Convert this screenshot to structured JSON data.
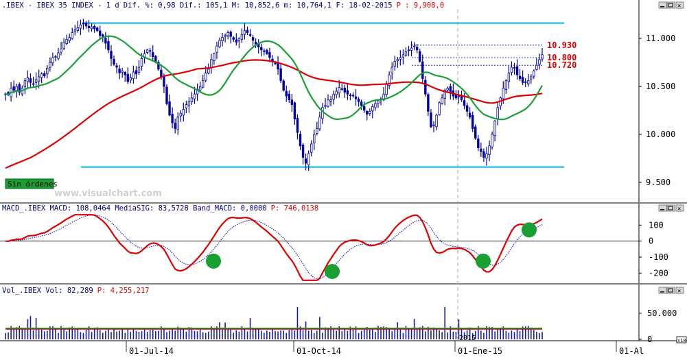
{
  "panels": {
    "price_header_name": ".IBEX - IBEX 35 INDEX - 1 d",
    "price_header_stats": "Dif. %: 0,98 Dif.: 105,1 M: 10,852,6 m: 10,764,1 F: 18-02-2015",
    "price_header_p": "P : 9,908,0",
    "no_orders_label": "Sin órdenes",
    "watermark": "www.visualchart.com",
    "macd_header": "MACD_.IBEX MACD: 108,0464 MediaSIG: 83,5728 Band_MACD: 0,0000",
    "macd_header_p": "P: 746,0138",
    "vol_header": "Vol_.IBEX Vol: 82,289",
    "vol_header_p": "P: 4,255,217",
    "year_marker": "2015",
    "corner_scale": "x10"
  },
  "chart_data": [
    {
      "type": "candlestick",
      "name": "IBEX 35 INDEX daily",
      "y_ticks": [
        "11.000",
        "10.500",
        "10.000",
        "9.500"
      ],
      "ylim": [
        9300,
        11300
      ],
      "x_ticks": [
        "01-Jul-14",
        "01-Oct-14",
        "01-Ene-15",
        "01-Al"
      ],
      "series": [
        {
          "name": "short MA",
          "color": "#1aa032"
        },
        {
          "name": "long MA",
          "color": "#e00000"
        }
      ],
      "levels": [
        {
          "label": "10.930",
          "value": 10930
        },
        {
          "label": "10.800",
          "value": 10800
        },
        {
          "label": "10.720",
          "value": 10720
        }
      ],
      "channel": {
        "top": 11160,
        "bottom": 9660,
        "color": "#00b0e0"
      },
      "values": [
        10420,
        10410,
        10480,
        10460,
        10500,
        10440,
        10480,
        10560,
        10590,
        10540,
        10520,
        10570,
        10600,
        10630,
        10610,
        10690,
        10750,
        10800,
        10810,
        10850,
        10890,
        10960,
        10990,
        11010,
        11060,
        11090,
        11110,
        11140,
        11150,
        11130,
        11110,
        11120,
        11100,
        11080,
        11030,
        11020,
        10950,
        10880,
        10790,
        10730,
        10700,
        10640,
        10660,
        10620,
        10550,
        10590,
        10650,
        10630,
        10700,
        10790,
        10840,
        10880,
        10870,
        10810,
        10760,
        10680,
        10600,
        10500,
        10320,
        10200,
        10120,
        10060,
        10180,
        10220,
        10260,
        10310,
        10340,
        10380,
        10420,
        10470,
        10500,
        10560,
        10640,
        10680,
        10780,
        10840,
        10920,
        10980,
        11010,
        11030,
        11060,
        11020,
        10990,
        10960,
        11000,
        11040,
        11080,
        11060,
        11030,
        10980,
        10940,
        10910,
        10880,
        10870,
        10840,
        10800,
        10760,
        10740,
        10680,
        10560,
        10460,
        10400,
        10360,
        10310,
        10160,
        10020,
        9880,
        9760,
        9700,
        9800,
        9900,
        10000,
        10060,
        10180,
        10280,
        10300,
        10360,
        10360,
        10420,
        10450,
        10490,
        10470,
        10440,
        10420,
        10410,
        10400,
        10370,
        10340,
        10300,
        10250,
        10210,
        10240,
        10290,
        10320,
        10350,
        10370,
        10420,
        10520,
        10620,
        10700,
        10760,
        10780,
        10800,
        10830,
        10860,
        10880,
        10900,
        10920,
        10880,
        10760,
        10580,
        10420,
        10240,
        10080,
        10100,
        10200,
        10330,
        10380,
        10460,
        10480,
        10440,
        10400,
        10380,
        10400,
        10360,
        10300,
        10240,
        10180,
        10060,
        9960,
        9860,
        9820,
        9760,
        9800,
        9880,
        10000,
        10140,
        10280,
        10380,
        10480,
        10560,
        10640,
        10700,
        10690,
        10620,
        10580,
        10540,
        10540,
        10560,
        10600,
        10660,
        10720,
        10780,
        10830
      ]
    },
    {
      "type": "line",
      "name": "MACD",
      "y_ticks": [
        "100",
        "0",
        "-100",
        "-200"
      ],
      "ylim": [
        -250,
        170
      ],
      "series": [
        {
          "name": "MACD",
          "color": "#e00000"
        },
        {
          "name": "MediaSIG",
          "color": "#0000c0"
        }
      ],
      "highlights": [
        -125,
        -190,
        -125,
        70
      ]
    },
    {
      "type": "bar",
      "name": "Volume",
      "y_ticks": [
        "50.000",
        "0"
      ],
      "ylim": [
        0,
        80000
      ],
      "series": [
        {
          "name": "Vol",
          "color": "#1a1aa0"
        },
        {
          "name": "avg",
          "color": "#e00000"
        }
      ]
    }
  ]
}
